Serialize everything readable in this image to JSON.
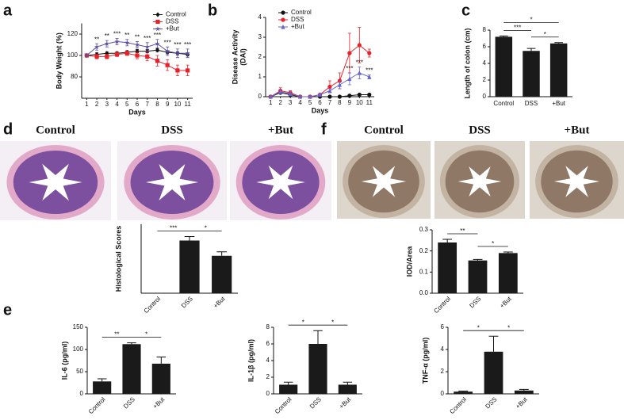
{
  "chart_data": [
    {
      "panel": "a",
      "type": "line",
      "ylabel": "Body Weight (%)",
      "xlabel": "Days",
      "x": [
        1,
        2,
        3,
        4,
        5,
        6,
        7,
        8,
        9,
        10,
        11
      ],
      "xlim": [
        0.5,
        11.5
      ],
      "xticks": [
        1,
        2,
        3,
        4,
        5,
        6,
        7,
        8,
        9,
        10,
        11
      ],
      "ylim": [
        60,
        130
      ],
      "yticks": [
        80,
        100,
        120
      ],
      "legend": "upper right",
      "series": [
        {
          "name": "Control",
          "color": "#111111",
          "marker": "diamond",
          "values": [
            100,
            101,
            102,
            102,
            103,
            104,
            104,
            105,
            103,
            102,
            101
          ],
          "errors": [
            0,
            1.5,
            1.5,
            1.5,
            1.5,
            1.5,
            1.5,
            1.5,
            1.5,
            1.5,
            1.5
          ]
        },
        {
          "name": "DSS",
          "color": "#e8202a",
          "marker": "square",
          "values": [
            100,
            99,
            99,
            101,
            102,
            100,
            99,
            95,
            91,
            86,
            86
          ],
          "errors": [
            0,
            2,
            2,
            2,
            2,
            3,
            4,
            5,
            5,
            5,
            5
          ]
        },
        {
          "name": "+But",
          "color": "#5b4fa0",
          "marker": "star",
          "values": [
            100,
            108,
            111,
            113,
            112,
            110,
            108,
            111,
            104,
            102,
            102
          ],
          "errors": [
            0,
            3,
            3,
            3,
            3,
            3,
            4,
            4,
            4,
            4,
            4
          ]
        }
      ],
      "annotations": [
        null,
        "**",
        "**",
        "***",
        "**",
        "**",
        "***",
        "***",
        "***",
        "***",
        "***"
      ]
    },
    {
      "panel": "b",
      "type": "line",
      "ylabel": [
        "Disease Activity",
        "(DAI)"
      ],
      "xlabel": "Days",
      "x": [
        1,
        2,
        3,
        4,
        5,
        6,
        7,
        8,
        9,
        10,
        11
      ],
      "xlim": [
        0.5,
        11.5
      ],
      "xticks": [
        1,
        2,
        3,
        4,
        5,
        6,
        7,
        8,
        9,
        10,
        11
      ],
      "ylim": [
        0,
        4
      ],
      "yticks": [
        0,
        1,
        2,
        3,
        4
      ],
      "legend": "upper left",
      "series": [
        {
          "name": "Control",
          "color": "#111111",
          "marker": "circle",
          "values": [
            0,
            0.2,
            0.1,
            0,
            0,
            0,
            0,
            0,
            0.05,
            0.1,
            0.1
          ],
          "errors": [
            0,
            0.05,
            0.05,
            0,
            0,
            0,
            0,
            0,
            0.05,
            0.05,
            0.05
          ]
        },
        {
          "name": "DSS",
          "color": "#e8202a",
          "marker": "circle",
          "values": [
            0,
            0.3,
            0.2,
            0,
            0,
            0.1,
            0.5,
            0.8,
            2.2,
            2.6,
            2.2
          ],
          "errors": [
            0,
            0.15,
            0.1,
            0,
            0,
            0.05,
            0.3,
            0.4,
            1,
            0.9,
            0.2
          ]
        },
        {
          "name": "+But",
          "color": "#6666cc",
          "marker": "triangle",
          "values": [
            0,
            0.25,
            0.15,
            0,
            0,
            0.1,
            0.3,
            0.6,
            0.9,
            1.2,
            1
          ],
          "errors": [
            0,
            0.1,
            0.1,
            0,
            0,
            0.05,
            0.1,
            0.2,
            0.3,
            0.3,
            0.1
          ]
        }
      ],
      "annotations": [
        null,
        null,
        null,
        null,
        null,
        null,
        null,
        null,
        "***",
        "***",
        "***"
      ]
    },
    {
      "panel": "c",
      "type": "bar",
      "ylabel": "Length of colon (cm)",
      "categories": [
        "Control",
        "DSS",
        "+But"
      ],
      "values": [
        7.2,
        5.5,
        6.4
      ],
      "errors": [
        0.1,
        0.3,
        0.1
      ],
      "color": "#1a1a1a",
      "ylim": [
        0,
        8
      ],
      "yticks": [
        0,
        2,
        4,
        6,
        8
      ],
      "significance": [
        {
          "between": [
            "Control",
            "DSS"
          ],
          "label": "***"
        },
        {
          "between": [
            "DSS",
            "+But"
          ],
          "label": "*"
        },
        {
          "between": [
            "Control",
            "+But"
          ],
          "label": "*"
        }
      ]
    },
    {
      "type": "bar",
      "ylabel": "Histological Scores",
      "categories": [
        "Control",
        "DSS",
        "+But"
      ],
      "values": [
        0,
        10.7,
        7.6
      ],
      "errors": [
        0,
        0.8,
        0.8
      ],
      "color": "#1a1a1a",
      "ylim": [
        0,
        14
      ],
      "significance": [
        {
          "between": [
            "Control",
            "DSS"
          ],
          "label": "***"
        },
        {
          "between": [
            "DSS",
            "+But"
          ],
          "label": "*"
        }
      ]
    },
    {
      "type": "bar",
      "ylabel": "IOD/Area",
      "categories": [
        "Control",
        "DSS",
        "+But"
      ],
      "values": [
        0.24,
        0.155,
        0.19
      ],
      "errors": [
        0.015,
        0.005,
        0.005
      ],
      "color": "#1a1a1a",
      "ylim": [
        0,
        0.3
      ],
      "yticks": [
        {
          "value": 0,
          "label": "0.0"
        },
        0.1,
        0.2,
        0.3
      ],
      "significance": [
        {
          "between": [
            "Control",
            "DSS"
          ],
          "label": "**"
        },
        {
          "between": [
            "DSS",
            "+But"
          ],
          "label": "*"
        }
      ]
    },
    {
      "panel": "e",
      "type": "bar",
      "ylabel": "IL-6 (pg/ml)",
      "categories": [
        "Control",
        "DSS",
        "+But"
      ],
      "values": [
        28,
        112,
        68
      ],
      "errors": [
        6,
        3,
        15
      ],
      "color": "#1a1a1a",
      "ylim": [
        0,
        150
      ],
      "yticks": [
        0,
        50,
        100,
        150
      ],
      "significance": [
        {
          "between": [
            "Control",
            "DSS"
          ],
          "label": "**"
        },
        {
          "between": [
            "DSS",
            "+But"
          ],
          "label": "*"
        }
      ]
    },
    {
      "type": "bar",
      "ylabel": "IL-1β (pg/ml)",
      "categories": [
        "Control",
        "DSS",
        "+But"
      ],
      "values": [
        1.1,
        6,
        1.1
      ],
      "errors": [
        0.3,
        1.6,
        0.3
      ],
      "color": "#1a1a1a",
      "ylim": [
        0,
        8
      ],
      "yticks": [
        0,
        2,
        4,
        6,
        8
      ],
      "significance": [
        {
          "between": [
            "Control",
            "DSS"
          ],
          "label": "*"
        },
        {
          "between": [
            "DSS",
            "+But"
          ],
          "label": "*"
        }
      ]
    },
    {
      "type": "bar",
      "ylabel": "TNF-α (pg/ml)",
      "categories": [
        "Control",
        "DSS",
        "+But"
      ],
      "values": [
        0.2,
        3.8,
        0.3
      ],
      "errors": [
        0.05,
        1.4,
        0.1
      ],
      "color": "#1a1a1a",
      "ylim": [
        0,
        6
      ],
      "yticks": [
        0,
        2,
        4,
        6
      ],
      "significance": [
        {
          "between": [
            "Control",
            "DSS"
          ],
          "label": "*"
        },
        {
          "between": [
            "DSS",
            "+But"
          ],
          "label": "*"
        }
      ]
    }
  ],
  "image_panels": [
    {
      "panel": "d",
      "labels": [
        "Control",
        "DSS",
        "+But"
      ]
    },
    {
      "panel": "f",
      "labels": [
        "Control",
        "DSS",
        "+But"
      ]
    }
  ]
}
